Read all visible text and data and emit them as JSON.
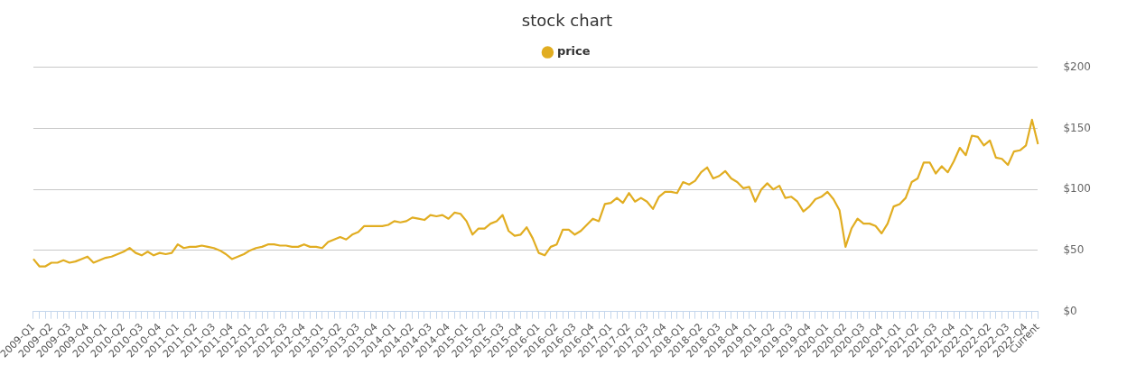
{
  "chart_data": {
    "type": "line",
    "title": "stock chart",
    "categories": [
      "2009-Q1",
      null,
      null,
      "2009-Q2",
      null,
      null,
      "2009-Q3",
      null,
      null,
      "2009-Q4",
      null,
      null,
      "2010-Q1",
      null,
      null,
      "2010-Q2",
      null,
      null,
      "2010-Q3",
      null,
      null,
      "2010-Q4",
      null,
      null,
      "2011-Q1",
      null,
      null,
      "2011-Q2",
      null,
      null,
      "2011-Q3",
      null,
      null,
      "2011-Q4",
      null,
      null,
      "2012-Q1",
      null,
      null,
      "2012-Q2",
      null,
      null,
      "2012-Q3",
      null,
      null,
      "2012-Q4",
      null,
      null,
      "2013-Q1",
      null,
      null,
      "2013-Q2",
      null,
      null,
      "2013-Q3",
      null,
      null,
      "2013-Q4",
      null,
      null,
      "2014-Q1",
      null,
      null,
      "2014-Q2",
      null,
      null,
      "2014-Q3",
      null,
      null,
      "2014-Q4",
      null,
      null,
      "2015-Q1",
      null,
      null,
      "2015-Q2",
      null,
      null,
      "2015-Q3",
      null,
      null,
      "2015-Q4",
      null,
      null,
      "2016-Q1",
      null,
      null,
      "2016-Q2",
      null,
      null,
      "2016-Q3",
      null,
      null,
      "2016-Q4",
      null,
      null,
      "2017-Q1",
      null,
      null,
      "2017-Q2",
      null,
      null,
      "2017-Q3",
      null,
      null,
      "2017-Q4",
      null,
      null,
      "2018-Q1",
      null,
      null,
      "2018-Q2",
      null,
      null,
      "2018-Q3",
      null,
      null,
      "2018-Q4",
      null,
      null,
      "2019-Q1",
      null,
      null,
      "2019-Q2",
      null,
      null,
      "2019-Q3",
      null,
      null,
      "2019-Q4",
      null,
      null,
      "2020-Q1",
      null,
      null,
      "2020-Q2",
      null,
      null,
      "2020-Q3",
      null,
      null,
      "2020-Q4",
      null,
      null,
      "2021-Q1",
      null,
      null,
      "2021-Q2",
      null,
      null,
      "2021-Q3",
      null,
      null,
      "2021-Q4",
      null,
      null,
      "2022-Q1",
      null,
      null,
      "2022-Q2",
      null,
      null,
      "2022-Q3",
      null,
      null,
      "2022-Q4",
      null,
      "Current"
    ],
    "series": [
      {
        "name": "price",
        "color": "#e1ad21",
        "values": [
          43,
          37,
          37,
          40,
          40,
          42,
          40,
          41,
          43,
          45,
          40,
          42,
          44,
          45,
          47,
          49,
          52,
          48,
          46,
          49,
          46,
          48,
          47,
          48,
          55,
          52,
          53,
          53,
          54,
          53,
          52,
          50,
          47,
          43,
          45,
          47,
          50,
          52,
          53,
          55,
          55,
          54,
          54,
          53,
          53,
          55,
          53,
          53,
          52,
          57,
          59,
          61,
          59,
          63,
          65,
          70,
          70,
          70,
          70,
          71,
          74,
          73,
          74,
          77,
          76,
          75,
          79,
          78,
          79,
          76,
          81,
          80,
          74,
          63,
          68,
          68,
          72,
          74,
          79,
          66,
          62,
          63,
          69,
          60,
          48,
          46,
          53,
          55,
          67,
          67,
          63,
          66,
          71,
          76,
          74,
          88,
          89,
          93,
          89,
          97,
          90,
          93,
          90,
          84,
          94,
          98,
          98,
          97,
          106,
          104,
          107,
          114,
          118,
          109,
          111,
          115,
          109,
          106,
          101,
          102,
          90,
          100,
          105,
          100,
          103,
          93,
          94,
          90,
          82,
          86,
          92,
          94,
          98,
          92,
          83,
          53,
          68,
          76,
          72,
          72,
          70,
          64,
          72,
          86,
          88,
          93,
          106,
          109,
          122,
          122,
          113,
          119,
          114,
          123,
          134,
          128,
          144,
          143,
          136,
          140,
          126,
          125,
          120,
          131,
          132,
          136,
          157,
          137
        ]
      }
    ],
    "ylim": [
      0,
      200
    ],
    "yticks": [
      {
        "value": 0,
        "label": "$0"
      },
      {
        "value": 50,
        "label": "$50"
      },
      {
        "value": 100,
        "label": "$100"
      },
      {
        "value": 150,
        "label": "$150"
      },
      {
        "value": 200,
        "label": "$200"
      }
    ],
    "grid": "y",
    "legend": "top",
    "marker": "none",
    "line_style": "solid"
  }
}
